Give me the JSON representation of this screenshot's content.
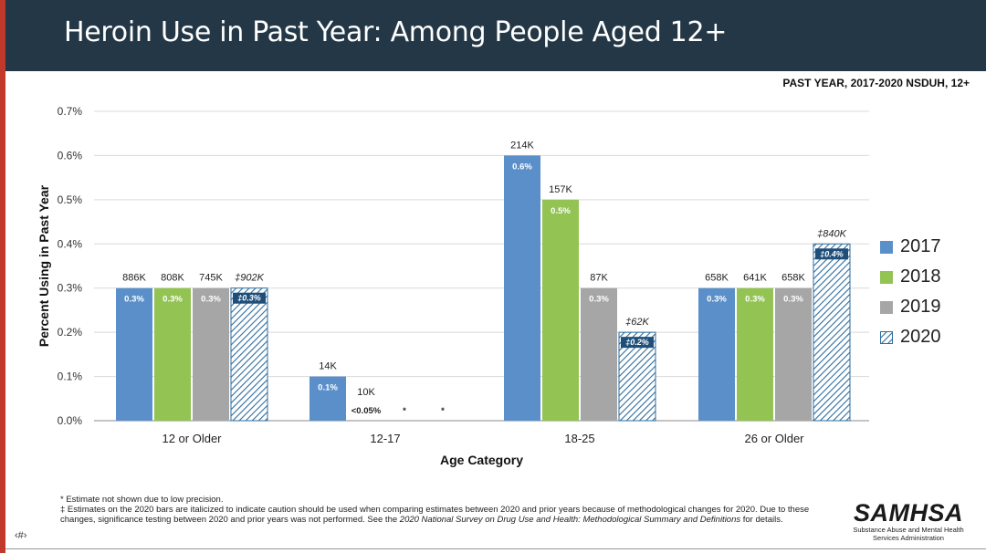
{
  "header": {
    "title": "Heroin Use in Past Year: Among People Aged 12+"
  },
  "source_tag": "PAST YEAR, 2017-2020 NSDUH, 12+",
  "colors": {
    "header_bg": "#243746",
    "s2017": "#5b8fc9",
    "s2018": "#92c353",
    "s2019": "#a6a6a6",
    "s2020_stripe": "#2e6d9e",
    "label_box": "#1f4e79",
    "accent_bar": "#c0392b"
  },
  "chart_data": {
    "type": "bar",
    "title": "",
    "xlabel": "Age Category",
    "ylabel": "Percent Using in Past Year",
    "ylim": [
      0,
      0.7
    ],
    "yticks": [
      "0.0%",
      "0.1%",
      "0.2%",
      "0.3%",
      "0.4%",
      "0.5%",
      "0.6%",
      "0.7%"
    ],
    "categories": [
      "12 or Older",
      "12-17",
      "18-25",
      "26 or Older"
    ],
    "series": [
      {
        "name": "2017",
        "values": [
          0.3,
          0.1,
          0.6,
          0.3
        ],
        "pct_labels": [
          "0.3%",
          "0.1%",
          "0.6%",
          "0.3%"
        ],
        "count_labels": [
          "886K",
          "14K",
          "214K",
          "658K"
        ]
      },
      {
        "name": "2018",
        "values": [
          0.3,
          null,
          0.5,
          0.3
        ],
        "pct_labels": [
          "0.3%",
          "<0.05%",
          "0.5%",
          "0.3%"
        ],
        "count_labels": [
          "808K",
          "10K",
          "157K",
          "641K"
        ]
      },
      {
        "name": "2019",
        "values": [
          0.3,
          null,
          0.3,
          0.3
        ],
        "pct_labels": [
          "0.3%",
          "*",
          "0.3%",
          "0.3%"
        ],
        "count_labels": [
          "745K",
          "",
          "87K",
          "658K"
        ]
      },
      {
        "name": "2020",
        "values": [
          0.3,
          null,
          0.2,
          0.4
        ],
        "pct_labels": [
          "‡0.3%",
          "*",
          "‡0.2%",
          "‡0.4%"
        ],
        "count_labels": [
          "‡902K",
          "",
          "‡62K",
          "‡840K"
        ]
      }
    ],
    "grid": true,
    "legend_position": "right"
  },
  "footnotes": {
    "note1": "* Estimate not shown due to low precision.",
    "note2_a": "‡ Estimates on the 2020 bars are italicized to indicate caution should be used when comparing estimates between 2020 and prior years because of methodological changes for 2020. Due to these changes, significance testing between 2020 and prior years was not performed. See the ",
    "note2_em": "2020 National Survey on Drug Use and Health: Methodological Summary and Definitions",
    "note2_b": " for details."
  },
  "page_number": "‹#›",
  "logo": {
    "word": "SAMHSA",
    "sub": "Substance Abuse and Mental Health Services Administration"
  }
}
